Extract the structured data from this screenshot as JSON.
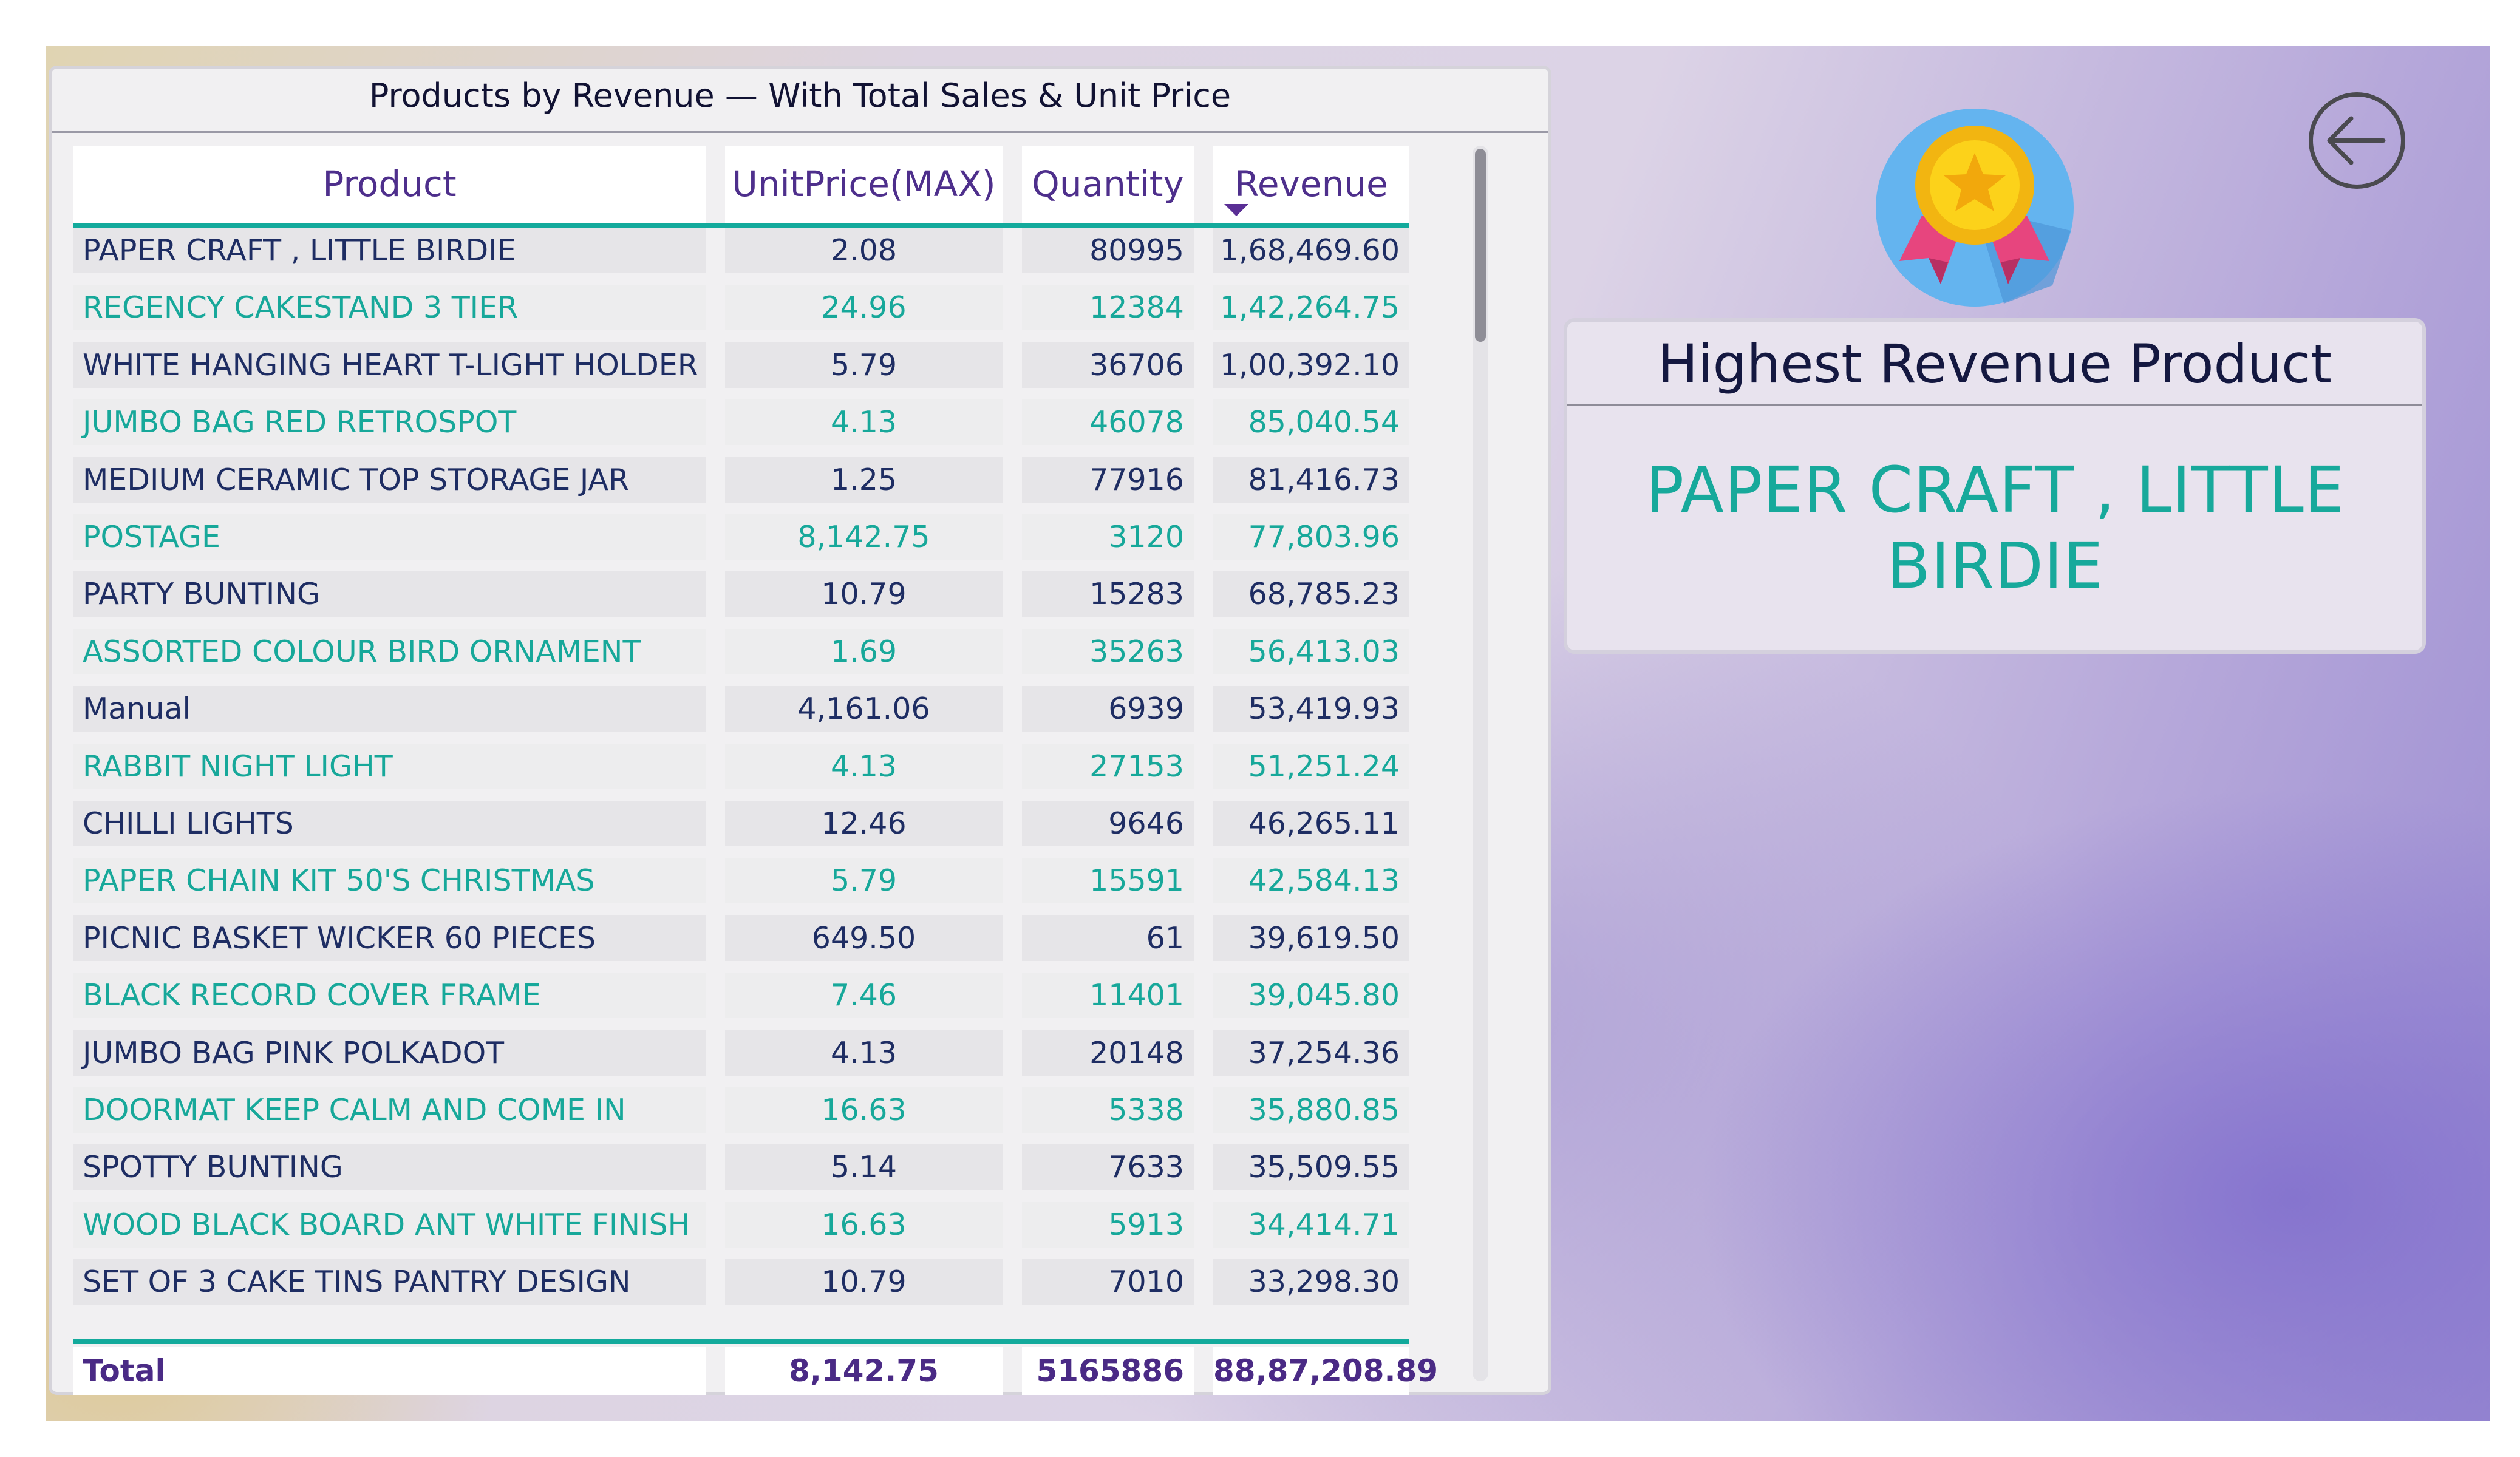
{
  "table": {
    "title": "Products by Revenue — With Total Sales & Unit Price",
    "columns": [
      "Product",
      "UnitPrice(MAX)",
      "Quantity",
      "Revenue"
    ],
    "sorted_column": "Revenue",
    "sort_direction": "descending",
    "rows": [
      [
        "PAPER CRAFT , LITTLE BIRDIE",
        "2.08",
        "80995",
        "1,68,469.60"
      ],
      [
        "REGENCY CAKESTAND 3 TIER",
        "24.96",
        "12384",
        "1,42,264.75"
      ],
      [
        "WHITE HANGING HEART T-LIGHT HOLDER",
        "5.79",
        "36706",
        "1,00,392.10"
      ],
      [
        "JUMBO BAG RED RETROSPOT",
        "4.13",
        "46078",
        "85,040.54"
      ],
      [
        "MEDIUM CERAMIC TOP STORAGE JAR",
        "1.25",
        "77916",
        "81,416.73"
      ],
      [
        "POSTAGE",
        "8,142.75",
        "3120",
        "77,803.96"
      ],
      [
        "PARTY BUNTING",
        "10.79",
        "15283",
        "68,785.23"
      ],
      [
        "ASSORTED COLOUR BIRD ORNAMENT",
        "1.69",
        "35263",
        "56,413.03"
      ],
      [
        "Manual",
        "4,161.06",
        "6939",
        "53,419.93"
      ],
      [
        "RABBIT NIGHT LIGHT",
        "4.13",
        "27153",
        "51,251.24"
      ],
      [
        "CHILLI LIGHTS",
        "12.46",
        "9646",
        "46,265.11"
      ],
      [
        "PAPER CHAIN KIT 50'S CHRISTMAS",
        "5.79",
        "15591",
        "42,584.13"
      ],
      [
        "PICNIC BASKET WICKER 60 PIECES",
        "649.50",
        "61",
        "39,619.50"
      ],
      [
        "BLACK RECORD COVER FRAME",
        "7.46",
        "11401",
        "39,045.80"
      ],
      [
        "JUMBO BAG PINK POLKADOT",
        "4.13",
        "20148",
        "37,254.36"
      ],
      [
        "DOORMAT KEEP CALM AND COME IN",
        "16.63",
        "5338",
        "35,880.85"
      ],
      [
        "SPOTTY BUNTING",
        "5.14",
        "7633",
        "35,509.55"
      ],
      [
        "WOOD BLACK BOARD ANT WHITE FINISH",
        "16.63",
        "5913",
        "34,414.71"
      ],
      [
        "SET OF 3 CAKE TINS PANTRY DESIGN",
        "10.79",
        "7010",
        "33,298.30"
      ]
    ],
    "total": [
      "Total",
      "8,142.75",
      "5165886",
      "88,87,208.89"
    ]
  },
  "kpi": {
    "title": "Highest Revenue Product",
    "value": "PAPER CRAFT , LITTLE BIRDIE"
  },
  "icons": {
    "back": "arrow-left-circle-icon",
    "medal": "medal-icon"
  },
  "colors": {
    "teal": "#13aa9c",
    "navy": "#1e2d63",
    "purple": "#4e2f8c"
  }
}
